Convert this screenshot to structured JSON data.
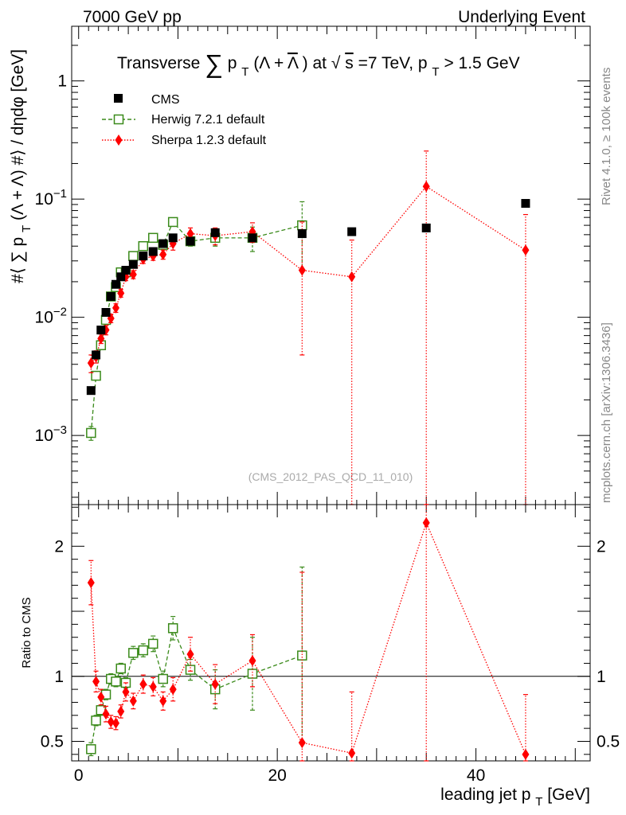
{
  "header": {
    "left": "7000 GeV pp",
    "right": "Underlying Event"
  },
  "side_text": {
    "rivet": "Rivet 4.1.0, ≥ 100k events",
    "mcplots": "mcplots.cern.ch [arXiv:1306.3436]"
  },
  "colors": {
    "cms": "#000000",
    "herwig": "#3a8a1a",
    "sherpa": "#ff0000"
  },
  "chart_data": [
    {
      "type": "scatter",
      "panel": "main",
      "title": "Transverse ∑ pT (Λ + Λ̄) at √s=7 TeV, pT > 1.5 GeV",
      "title_parts": {
        "t1": "Transverse",
        "sum": "∑",
        "p": "p",
        "T": "T",
        "paren": "(Λ + ",
        "lambdabar": "Λ",
        "atsqrt": ") at √",
        "s": "s",
        "rest": "=7 TeV, p",
        "T2": "T",
        "cut": " > 1.5 GeV"
      },
      "ylabel": "#⟨ ∑ pT(Λ + Λ̄) #⟩ / dηdφ [GeV]",
      "ylabel_parts": {
        "a": "#⟨ ∑ p",
        "b": "T",
        "c": "(Λ + Λ) #⟩ / dηdφ [GeV]"
      },
      "yscale": "log",
      "ylim": [
        0.00026,
        2.9
      ],
      "xlim": [
        -0.7,
        51.5
      ],
      "y_ticks": [
        {
          "value": 0.001,
          "base": "10",
          "exp": "−3"
        },
        {
          "value": 0.01,
          "base": "10",
          "exp": "−2"
        },
        {
          "value": 0.1,
          "base": "10",
          "exp": "−1"
        },
        {
          "value": 1,
          "label": "1"
        }
      ],
      "watermark": "(CMS_2012_PAS_QCD_11_010)",
      "legend": [
        {
          "name": "CMS",
          "marker": "square-filled"
        },
        {
          "name": "Herwig 7.2.1 default",
          "marker": "square-open"
        },
        {
          "name": "Sherpa 1.2.3 default",
          "marker": "diamond"
        }
      ],
      "series": [
        {
          "name": "CMS",
          "x": [
            1.25,
            1.75,
            2.25,
            2.75,
            3.25,
            3.75,
            4.25,
            4.75,
            5.5,
            6.5,
            7.5,
            8.5,
            9.5,
            11.25,
            13.75,
            17.5,
            22.5,
            27.5,
            35.0,
            45.0
          ],
          "y": [
            0.0024,
            0.0048,
            0.0078,
            0.011,
            0.015,
            0.019,
            0.022,
            0.025,
            0.028,
            0.033,
            0.036,
            0.042,
            0.047,
            0.044,
            0.052,
            0.047,
            0.051,
            0.053,
            0.057,
            0.092
          ]
        },
        {
          "name": "Herwig 7.2.1 default",
          "x": [
            1.25,
            1.75,
            2.25,
            2.75,
            3.25,
            3.75,
            4.25,
            4.75,
            5.5,
            6.5,
            7.5,
            8.5,
            9.5,
            11.25,
            13.75,
            17.5,
            22.5
          ],
          "y": [
            0.00105,
            0.0032,
            0.0058,
            0.0095,
            0.015,
            0.018,
            0.024,
            0.024,
            0.033,
            0.04,
            0.047,
            0.041,
            0.064,
            0.044,
            0.047,
            0.047,
            0.06
          ],
          "yerr": [
            0.00014,
            0.00025,
            0.0004,
            0.0006,
            0.0008,
            0.001,
            0.0012,
            0.0012,
            0.0016,
            0.002,
            0.0025,
            0.003,
            0.005,
            0.004,
            0.007,
            0.011,
            0.035
          ]
        },
        {
          "name": "Sherpa 1.2.3 default",
          "x": [
            1.25,
            1.75,
            2.25,
            2.75,
            3.25,
            3.75,
            4.25,
            4.75,
            5.5,
            6.5,
            7.5,
            8.5,
            9.5,
            11.25,
            13.75,
            17.5,
            22.5,
            27.5,
            35.0,
            45.0
          ],
          "y": [
            0.0041,
            0.0046,
            0.0066,
            0.0078,
            0.0098,
            0.012,
            0.016,
            0.022,
            0.023,
            0.031,
            0.033,
            0.034,
            0.042,
            0.051,
            0.049,
            0.053,
            0.025,
            0.022,
            0.128,
            0.037
          ],
          "ylo": [
            0.0034,
            0.0041,
            0.006,
            0.0071,
            0.009,
            0.011,
            0.0148,
            0.0204,
            0.0212,
            0.0285,
            0.0303,
            0.031,
            0.037,
            0.045,
            0.041,
            0.043,
            0.0048,
            0.00026,
            0.00026,
            0.00026
          ],
          "yhi": [
            0.0048,
            0.0052,
            0.0072,
            0.0085,
            0.0106,
            0.013,
            0.0172,
            0.0236,
            0.0248,
            0.0335,
            0.0357,
            0.037,
            0.047,
            0.057,
            0.057,
            0.063,
            0.064,
            0.045,
            0.255,
            0.074
          ]
        }
      ]
    },
    {
      "type": "scatter",
      "panel": "ratio",
      "ylabel": "Ratio to CMS",
      "xlabel": "leading jet pT [GeV]",
      "xlabel_parts": {
        "a": "leading jet p",
        "b": "T",
        "c": " [GeV]"
      },
      "ylim": [
        0.35,
        2.32
      ],
      "xlim": [
        -0.7,
        51.5
      ],
      "x_ticks": [
        0,
        20,
        40
      ],
      "y_ticks": [
        0.5,
        1,
        2
      ],
      "reference_line": 1,
      "series": [
        {
          "name": "Herwig 7.2.1 default",
          "x": [
            1.25,
            1.75,
            2.25,
            2.75,
            3.25,
            3.75,
            4.25,
            4.75,
            5.5,
            6.5,
            7.5,
            8.5,
            9.5,
            11.25,
            13.75,
            17.5,
            22.5
          ],
          "y": [
            0.44,
            0.66,
            0.74,
            0.86,
            0.98,
            0.96,
            1.06,
            0.95,
            1.18,
            1.2,
            1.25,
            0.98,
            1.37,
            1.05,
            0.9,
            1.02,
            1.16
          ],
          "yerr": [
            0.05,
            0.04,
            0.04,
            0.04,
            0.04,
            0.04,
            0.04,
            0.04,
            0.05,
            0.05,
            0.06,
            0.06,
            0.09,
            0.08,
            0.15,
            0.28,
            0.68
          ]
        },
        {
          "name": "Sherpa 1.2.3 default",
          "x": [
            1.25,
            1.75,
            2.25,
            2.75,
            3.25,
            3.75,
            4.25,
            4.75,
            5.5,
            6.5,
            7.5,
            8.5,
            9.5,
            11.25,
            13.75,
            17.5,
            22.5,
            27.5,
            35.0,
            45.0
          ],
          "y": [
            1.72,
            0.96,
            0.84,
            0.71,
            0.65,
            0.64,
            0.73,
            0.88,
            0.81,
            0.94,
            0.92,
            0.81,
            0.9,
            1.17,
            0.94,
            1.12,
            0.49,
            0.41,
            2.18,
            0.4
          ],
          "ylo": [
            1.55,
            0.88,
            0.78,
            0.65,
            0.6,
            0.59,
            0.68,
            0.81,
            0.75,
            0.87,
            0.85,
            0.74,
            0.81,
            1.04,
            0.79,
            0.92,
            0.35,
            0.35,
            0.35,
            0.35
          ],
          "yhi": [
            1.89,
            1.04,
            0.9,
            0.77,
            0.7,
            0.69,
            0.78,
            0.95,
            0.87,
            1.01,
            0.99,
            0.88,
            0.99,
            1.3,
            1.09,
            1.32,
            1.8,
            0.88,
            2.32,
            0.86
          ]
        }
      ]
    }
  ]
}
